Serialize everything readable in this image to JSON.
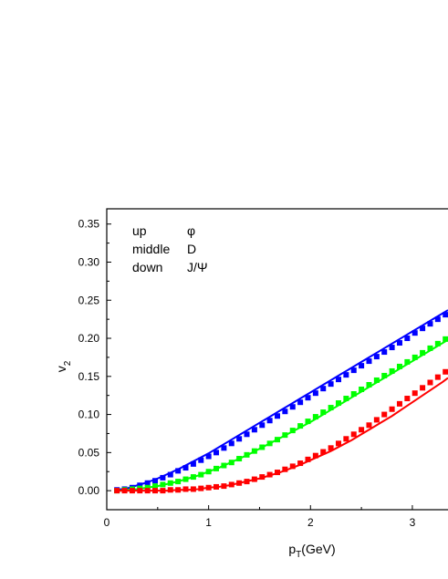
{
  "chart_data": {
    "type": "scatter",
    "title": "",
    "xlabel": {
      "main": "p",
      "sub": "T",
      "tail": "(GeV)"
    },
    "ylabel": {
      "main": "v",
      "sub": "2"
    },
    "xlim": [
      0,
      3.35
    ],
    "ylim": [
      -0.025,
      0.37
    ],
    "x_ticks": [
      0,
      1,
      2,
      3
    ],
    "x_tick_labels": [
      "0",
      "1",
      "2",
      "3"
    ],
    "y_ticks": [
      0.0,
      0.05,
      0.1,
      0.15,
      0.2,
      0.25,
      0.3,
      0.35
    ],
    "y_tick_labels": [
      "0.00",
      "0.05",
      "0.10",
      "0.15",
      "0.20",
      "0.25",
      "0.30",
      "0.35"
    ],
    "grid": false,
    "annotations": [
      {
        "left": "up",
        "right": "φ"
      },
      {
        "left": "middle",
        "right": "D"
      },
      {
        "left": "down",
        "right": "J/Ψ"
      }
    ],
    "series": [
      {
        "color": "#0000ff",
        "points_x": [
          0.1,
          0.175,
          0.25,
          0.325,
          0.4,
          0.475,
          0.55,
          0.625,
          0.7,
          0.775,
          0.85,
          0.925,
          1.0,
          1.075,
          1.15,
          1.225,
          1.3,
          1.375,
          1.45,
          1.525,
          1.6,
          1.675,
          1.75,
          1.825,
          1.9,
          1.975,
          2.05,
          2.125,
          2.2,
          2.275,
          2.35,
          2.425,
          2.5,
          2.575,
          2.65,
          2.725,
          2.8,
          2.875,
          2.95,
          3.025,
          3.1,
          3.175,
          3.25,
          3.325
        ],
        "points_y": [
          0.001,
          0.002,
          0.004,
          0.007,
          0.01,
          0.013,
          0.017,
          0.021,
          0.026,
          0.03,
          0.035,
          0.04,
          0.045,
          0.05,
          0.056,
          0.062,
          0.068,
          0.074,
          0.08,
          0.086,
          0.092,
          0.098,
          0.104,
          0.11,
          0.116,
          0.122,
          0.128,
          0.134,
          0.14,
          0.146,
          0.152,
          0.158,
          0.164,
          0.17,
          0.176,
          0.182,
          0.188,
          0.194,
          0.2,
          0.207,
          0.213,
          0.219,
          0.225,
          0.231
        ],
        "line_x": [
          0.1,
          0.2,
          0.3,
          0.4,
          0.5,
          0.6,
          0.7,
          0.8,
          0.9,
          1.0,
          1.1,
          1.2,
          1.3,
          1.4,
          1.5,
          1.6,
          1.7,
          1.8,
          1.9,
          2.0,
          2.1,
          2.2,
          2.3,
          2.4,
          2.5,
          2.6,
          2.7,
          2.8,
          2.9,
          3.0,
          3.1,
          3.2,
          3.3,
          3.35
        ],
        "line_y": [
          0.001,
          0.003,
          0.007,
          0.011,
          0.016,
          0.022,
          0.028,
          0.035,
          0.042,
          0.049,
          0.057,
          0.065,
          0.073,
          0.081,
          0.089,
          0.097,
          0.105,
          0.113,
          0.121,
          0.129,
          0.137,
          0.145,
          0.153,
          0.161,
          0.169,
          0.177,
          0.185,
          0.193,
          0.201,
          0.209,
          0.217,
          0.225,
          0.233,
          0.237
        ]
      },
      {
        "color": "#00ff00",
        "points_x": [
          0.1,
          0.175,
          0.25,
          0.325,
          0.4,
          0.475,
          0.55,
          0.625,
          0.7,
          0.775,
          0.85,
          0.925,
          1.0,
          1.075,
          1.15,
          1.225,
          1.3,
          1.375,
          1.45,
          1.525,
          1.6,
          1.675,
          1.75,
          1.825,
          1.9,
          1.975,
          2.05,
          2.125,
          2.2,
          2.275,
          2.35,
          2.425,
          2.5,
          2.575,
          2.65,
          2.725,
          2.8,
          2.875,
          2.95,
          3.025,
          3.1,
          3.175,
          3.25,
          3.325
        ],
        "points_y": [
          0.0,
          0.001,
          0.002,
          0.003,
          0.004,
          0.006,
          0.008,
          0.01,
          0.012,
          0.015,
          0.018,
          0.021,
          0.025,
          0.029,
          0.033,
          0.037,
          0.042,
          0.047,
          0.052,
          0.057,
          0.062,
          0.067,
          0.073,
          0.079,
          0.085,
          0.091,
          0.097,
          0.103,
          0.109,
          0.115,
          0.121,
          0.127,
          0.133,
          0.139,
          0.145,
          0.151,
          0.157,
          0.163,
          0.169,
          0.175,
          0.181,
          0.187,
          0.193,
          0.199
        ],
        "line_x": [
          0.1,
          0.2,
          0.3,
          0.4,
          0.5,
          0.6,
          0.7,
          0.8,
          0.9,
          1.0,
          1.1,
          1.2,
          1.3,
          1.4,
          1.5,
          1.6,
          1.7,
          1.8,
          1.9,
          2.0,
          2.1,
          2.2,
          2.3,
          2.4,
          2.5,
          2.6,
          2.7,
          2.8,
          2.9,
          3.0,
          3.1,
          3.2,
          3.3,
          3.35
        ],
        "line_y": [
          0.0,
          0.001,
          0.002,
          0.004,
          0.006,
          0.009,
          0.012,
          0.016,
          0.02,
          0.025,
          0.03,
          0.036,
          0.042,
          0.048,
          0.055,
          0.062,
          0.069,
          0.076,
          0.083,
          0.09,
          0.098,
          0.106,
          0.114,
          0.122,
          0.13,
          0.138,
          0.146,
          0.154,
          0.162,
          0.17,
          0.178,
          0.186,
          0.194,
          0.198
        ]
      },
      {
        "color": "#ff0000",
        "points_x": [
          0.1,
          0.175,
          0.25,
          0.325,
          0.4,
          0.475,
          0.55,
          0.625,
          0.7,
          0.775,
          0.85,
          0.925,
          1.0,
          1.075,
          1.15,
          1.225,
          1.3,
          1.375,
          1.45,
          1.525,
          1.6,
          1.675,
          1.75,
          1.825,
          1.9,
          1.975,
          2.05,
          2.125,
          2.2,
          2.275,
          2.35,
          2.425,
          2.5,
          2.575,
          2.65,
          2.725,
          2.8,
          2.875,
          2.95,
          3.025,
          3.1,
          3.175,
          3.25,
          3.325
        ],
        "points_y": [
          0.0,
          0.0,
          0.0,
          0.0,
          0.0,
          0.0,
          0.0,
          0.001,
          0.001,
          0.002,
          0.002,
          0.003,
          0.004,
          0.005,
          0.006,
          0.008,
          0.01,
          0.012,
          0.015,
          0.018,
          0.021,
          0.024,
          0.028,
          0.032,
          0.036,
          0.041,
          0.046,
          0.051,
          0.056,
          0.062,
          0.068,
          0.074,
          0.08,
          0.086,
          0.093,
          0.1,
          0.107,
          0.114,
          0.121,
          0.128,
          0.135,
          0.142,
          0.149,
          0.156
        ],
        "line_x": [
          0.1,
          0.2,
          0.3,
          0.4,
          0.5,
          0.6,
          0.7,
          0.8,
          0.9,
          1.0,
          1.1,
          1.2,
          1.3,
          1.4,
          1.5,
          1.6,
          1.7,
          1.8,
          1.9,
          2.0,
          2.1,
          2.2,
          2.3,
          2.4,
          2.5,
          2.6,
          2.7,
          2.8,
          2.9,
          3.0,
          3.1,
          3.2,
          3.3,
          3.35
        ],
        "line_y": [
          0.0,
          0.0,
          0.0,
          0.0,
          0.0,
          0.0,
          0.001,
          0.001,
          0.002,
          0.004,
          0.005,
          0.007,
          0.01,
          0.013,
          0.016,
          0.02,
          0.024,
          0.029,
          0.034,
          0.04,
          0.046,
          0.052,
          0.059,
          0.066,
          0.074,
          0.082,
          0.09,
          0.098,
          0.107,
          0.116,
          0.125,
          0.134,
          0.143,
          0.148
        ]
      }
    ]
  }
}
